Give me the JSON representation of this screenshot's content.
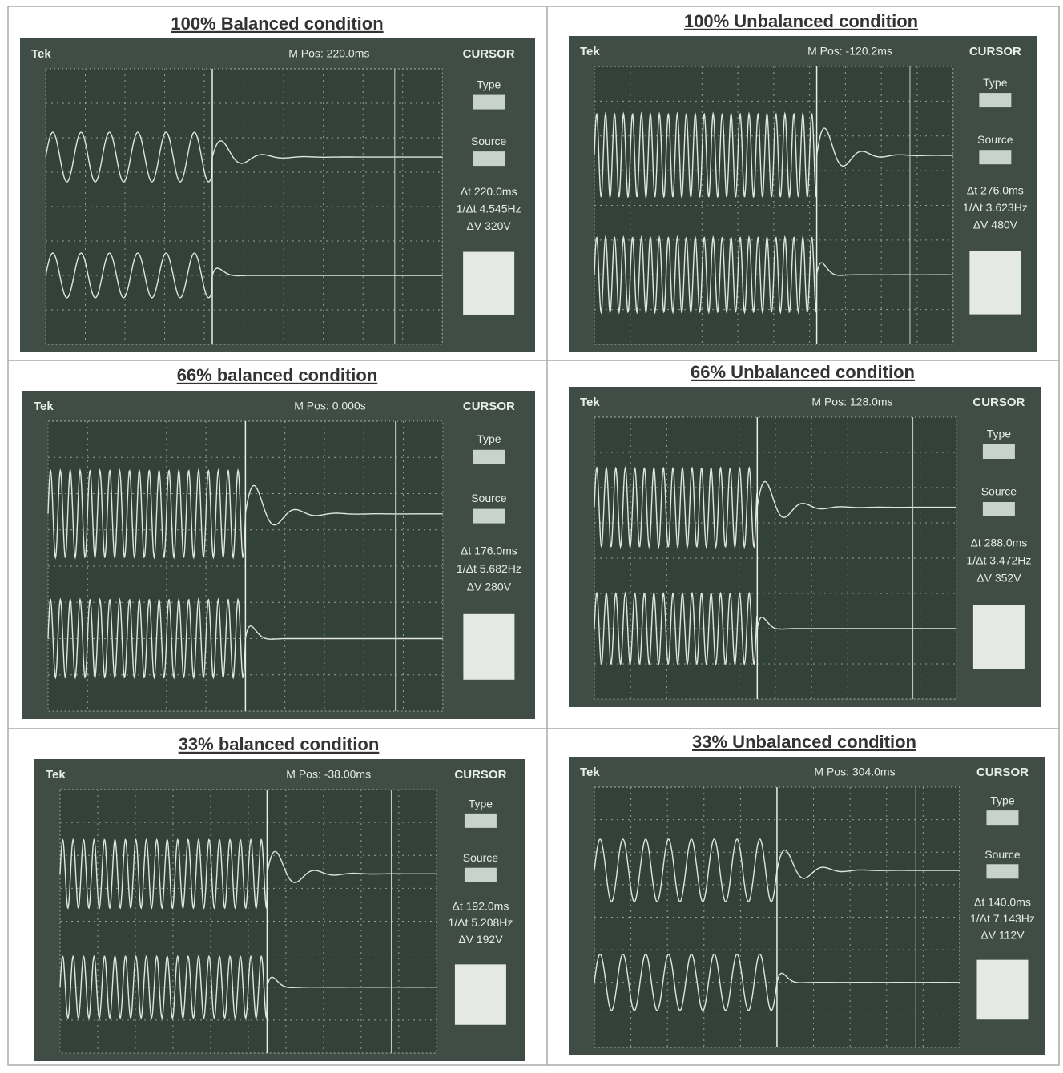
{
  "panels": [
    {
      "title": "100% Balanced condition",
      "scope": {
        "brand": "Tek",
        "position": "M Pos: 220.0ms",
        "menu": "CURSOR",
        "type_label": "Type",
        "source_label": "Source",
        "readouts": [
          "Δt 220.0ms",
          "1/Δt 4.545Hz",
          "ΔV 320V"
        ]
      }
    },
    {
      "title": "100% Unbalanced condition",
      "scope": {
        "brand": "Tek",
        "position": "M Pos: -120.2ms",
        "menu": "CURSOR",
        "type_label": "Type",
        "source_label": "Source",
        "readouts": [
          "Δt 276.0ms",
          "1/Δt 3.623Hz",
          "ΔV 480V"
        ]
      }
    },
    {
      "title": "66% balanced condition",
      "scope": {
        "brand": "Tek",
        "position": "M Pos: 0.000s",
        "menu": "CURSOR",
        "type_label": "Type",
        "source_label": "Source",
        "readouts": [
          "Δt 176.0ms",
          "1/Δt 5.682Hz",
          "ΔV 280V"
        ]
      }
    },
    {
      "title": "66% Unbalanced condition",
      "scope": {
        "brand": "Tek",
        "position": "M Pos: 128.0ms",
        "menu": "CURSOR",
        "type_label": "Type",
        "source_label": "Source",
        "readouts": [
          "Δt 288.0ms",
          "1/Δt 3.472Hz",
          "ΔV 352V"
        ]
      }
    },
    {
      "title": "33% balanced condition",
      "scope": {
        "brand": "Tek",
        "position": "M Pos: -38.00ms",
        "menu": "CURSOR",
        "type_label": "Type",
        "source_label": "Source",
        "readouts": [
          "Δt 192.0ms",
          "1/Δt 5.208Hz",
          "ΔV 192V"
        ]
      }
    },
    {
      "title": "33% Unbalanced condition",
      "scope": {
        "brand": "Tek",
        "position": "M Pos: 304.0ms",
        "menu": "CURSOR",
        "type_label": "Type",
        "source_label": "Source",
        "readouts": [
          "Δt 140.0ms",
          "1/Δt 7.143Hz",
          "ΔV 112V"
        ]
      }
    }
  ]
}
